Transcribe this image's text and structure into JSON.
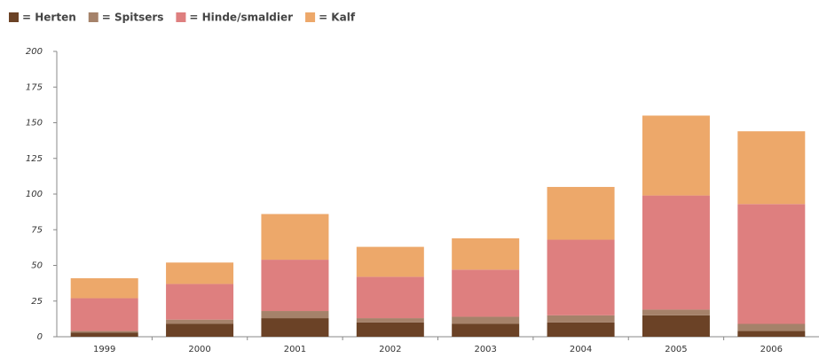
{
  "chart_data": {
    "type": "stacked_bar",
    "categories": [
      "1999",
      "2000",
      "2001",
      "2002",
      "2003",
      "2004",
      "2005",
      "2006"
    ],
    "series": [
      {
        "name": "= Herten",
        "color": "#6b4226",
        "values": [
          3,
          9,
          13,
          10,
          9,
          10,
          15,
          4
        ]
      },
      {
        "name": "= Spitsers",
        "color": "#a5826a",
        "values": [
          1,
          3,
          5,
          3,
          5,
          5,
          4,
          5
        ]
      },
      {
        "name": "= Hinde/smaldier",
        "color": "#de7f7f",
        "values": [
          23,
          25,
          36,
          29,
          33,
          53,
          80,
          84
        ]
      },
      {
        "name": "= Kalf",
        "color": "#eda86a",
        "values": [
          14,
          15,
          32,
          21,
          22,
          37,
          56,
          51
        ]
      }
    ],
    "ylim": [
      0,
      200
    ],
    "yticks": [
      0,
      25,
      50,
      75,
      100,
      125,
      150,
      175,
      200
    ]
  }
}
